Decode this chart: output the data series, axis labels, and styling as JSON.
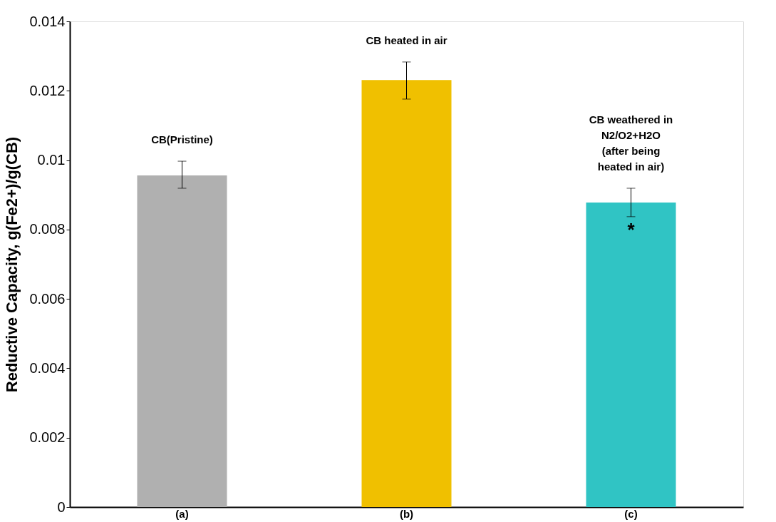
{
  "chart_data": {
    "type": "bar",
    "ylabel": "Reductive Capacity, g(Fe2+)/g(CB)",
    "categories": [
      "(a)",
      "(b)",
      "(c)"
    ],
    "values": [
      0.00956,
      0.01231,
      0.00878
    ],
    "colors": [
      "#b0b0b0",
      "#f0c000",
      "#30c4c4"
    ],
    "errors": [
      [
        0.00919,
        0.00997
      ],
      [
        0.01176,
        0.01283
      ],
      [
        0.00837,
        0.00919
      ]
    ],
    "ylim": [
      0,
      0.014
    ],
    "yticks": [
      0,
      0.002,
      0.004,
      0.006,
      0.008,
      0.01,
      0.012,
      0.014
    ],
    "grid": false,
    "annotations": [
      "CB(Pristine)",
      "CB heated in air",
      "CB weathered in\nN2/O2+H2O\n(after being\nheated in air)",
      "*"
    ]
  }
}
